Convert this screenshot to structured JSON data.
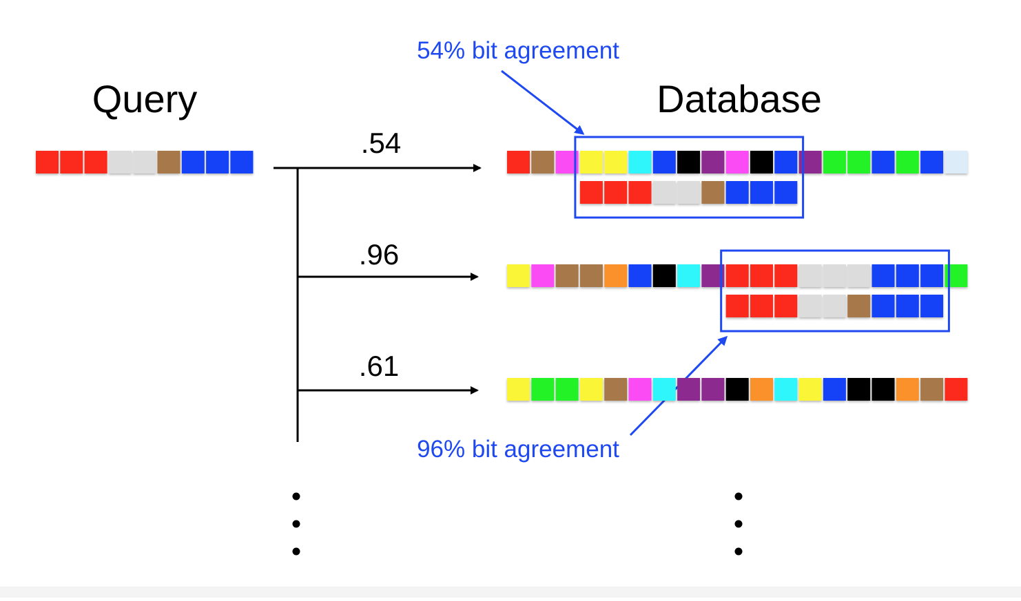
{
  "titles": {
    "query": "Query",
    "database": "Database"
  },
  "annotations": {
    "top": "54% bit agreement",
    "bottom": "96% bit agreement"
  },
  "colors": {
    "r": "#fb2a1f",
    "n": "#a77848",
    "m": "#fa4bf5",
    "y": "#fbf539",
    "c": "#2ef6fa",
    "b": "#1243f7",
    "k": "#000000",
    "p": "#8d2a8f",
    "g": "#24f226",
    "l": "#dcdcdc",
    "w": "#dcecf8",
    "o": "#fa912a",
    "annotation": "#1f49f0",
    "highlight_box": "#1f49f0"
  },
  "query_code": [
    "r",
    "r",
    "r",
    "l",
    "l",
    "n",
    "b",
    "b",
    "b"
  ],
  "matches": [
    {
      "score": ".54",
      "db_code": [
        "r",
        "n",
        "m",
        "y",
        "y",
        "c",
        "b",
        "k",
        "p",
        "m",
        "k",
        "b",
        "p",
        "g",
        "g",
        "b",
        "g",
        "b",
        "w"
      ],
      "window_start": 3,
      "agreement": 0.54
    },
    {
      "score": ".96",
      "db_code": [
        "y",
        "m",
        "n",
        "n",
        "o",
        "b",
        "k",
        "c",
        "p",
        "r",
        "r",
        "r",
        "l",
        "l",
        "l",
        "b",
        "b",
        "b",
        "g"
      ],
      "window_start": 9,
      "agreement": 0.96
    },
    {
      "score": ".61",
      "db_code": [
        "y",
        "g",
        "g",
        "y",
        "n",
        "m",
        "c",
        "p",
        "p",
        "k",
        "o",
        "c",
        "y",
        "b",
        "k",
        "k",
        "o",
        "n",
        "r"
      ],
      "window_start": null,
      "agreement": 0.61
    }
  ]
}
